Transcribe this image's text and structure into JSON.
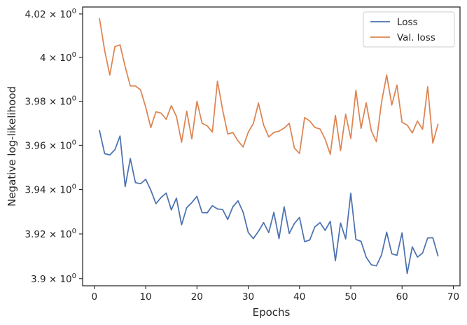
{
  "chart_data": {
    "type": "line",
    "title": "",
    "xlabel": "Epochs",
    "ylabel": "Negative log-likelihood",
    "xlim": [
      -2.3,
      71.3
    ],
    "ylim": [
      3.8968,
      4.0232
    ],
    "x_ticks": [
      0,
      10,
      20,
      30,
      40,
      50,
      60,
      70
    ],
    "y_ticks": [
      {
        "value": 3.9,
        "mantissa": "3.9",
        "exp": "0"
      },
      {
        "value": 3.92,
        "mantissa": "3.92",
        "exp": "0"
      },
      {
        "value": 3.94,
        "mantissa": "3.94",
        "exp": "0"
      },
      {
        "value": 3.96,
        "mantissa": "3.96",
        "exp": "0"
      },
      {
        "value": 3.98,
        "mantissa": "3.98",
        "exp": "0"
      },
      {
        "value": 4.0,
        "mantissa": "4",
        "exp": "0"
      },
      {
        "value": 4.02,
        "mantissa": "4.02",
        "exp": "0"
      }
    ],
    "y_scale": "log",
    "grid": false,
    "legend_position": "top-right",
    "x": [
      1,
      2,
      3,
      4,
      5,
      6,
      7,
      8,
      9,
      10,
      11,
      12,
      13,
      14,
      15,
      16,
      17,
      18,
      19,
      20,
      21,
      22,
      23,
      24,
      25,
      26,
      27,
      28,
      29,
      30,
      31,
      32,
      33,
      34,
      35,
      36,
      37,
      38,
      39,
      40,
      41,
      42,
      43,
      44,
      45,
      46,
      47,
      48,
      49,
      50,
      51,
      52,
      53,
      54,
      55,
      56,
      57,
      58,
      59,
      60,
      61,
      62,
      63,
      64,
      65,
      66,
      67
    ],
    "series": [
      {
        "name": "Loss",
        "color": "#4c72b0",
        "values": [
          3.9666,
          3.9562,
          3.9556,
          3.958,
          3.9642,
          3.9413,
          3.954,
          3.9431,
          3.9426,
          3.9446,
          3.9397,
          3.9336,
          3.9364,
          3.9384,
          3.9308,
          3.9361,
          3.9241,
          3.9318,
          3.9341,
          3.9369,
          3.9296,
          3.9295,
          3.9327,
          3.9312,
          3.931,
          3.9265,
          3.9322,
          3.9349,
          3.9298,
          3.9207,
          3.9179,
          3.9212,
          3.9251,
          3.9206,
          3.9297,
          3.9179,
          3.9322,
          3.9202,
          3.9247,
          3.9274,
          3.9165,
          3.9173,
          3.9232,
          3.9251,
          3.9216,
          3.9257,
          3.908,
          3.9249,
          3.9178,
          3.9383,
          3.9175,
          3.9167,
          3.9096,
          3.9062,
          3.9057,
          3.9106,
          3.9208,
          3.9111,
          3.9104,
          3.9205,
          3.9023,
          3.9142,
          3.9096,
          3.9114,
          3.9182,
          3.9183,
          3.9102
        ]
      },
      {
        "name": "Val. loss",
        "color": "#dd8452",
        "values": [
          4.0178,
          4.0032,
          3.992,
          4.005,
          4.0058,
          3.9958,
          3.987,
          3.987,
          3.9852,
          3.9774,
          3.968,
          3.9752,
          3.9746,
          3.9718,
          3.978,
          3.9731,
          3.9614,
          3.9755,
          3.9629,
          3.98,
          3.97,
          3.9688,
          3.966,
          3.9892,
          3.9762,
          3.9651,
          3.9658,
          3.962,
          3.9592,
          3.9659,
          3.9699,
          3.9792,
          3.9692,
          3.9638,
          3.9658,
          3.9664,
          3.9678,
          3.97,
          3.9587,
          3.9563,
          3.9726,
          3.971,
          3.9681,
          3.9674,
          3.9628,
          3.9559,
          3.9736,
          3.9576,
          3.9741,
          3.9631,
          3.985,
          3.9677,
          3.9793,
          3.9666,
          3.9616,
          3.9796,
          3.992,
          3.9783,
          3.9874,
          3.9704,
          3.9692,
          3.9656,
          3.971,
          3.9672,
          3.9866,
          3.961,
          3.9695
        ]
      }
    ]
  }
}
